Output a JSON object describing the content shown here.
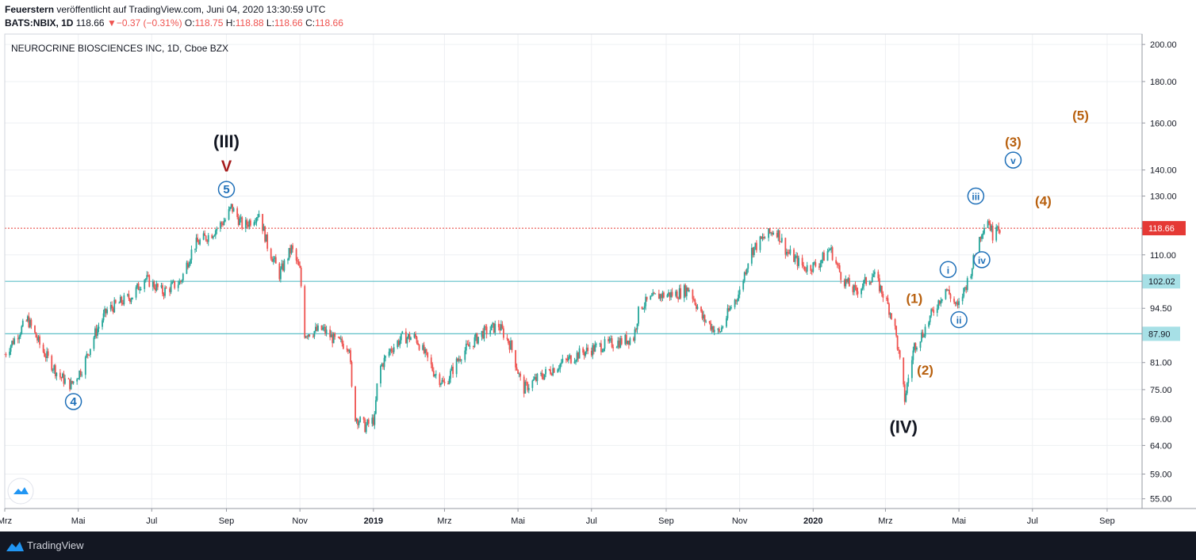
{
  "header": {
    "author": "Feuerstern",
    "published_text": "veröffentlicht auf TradingView.com, Juni 04, 2020 13:30:59 UTC",
    "symbol": "BATS:NBIX, 1D",
    "last": "118.66",
    "arrow": "▼",
    "change": "−0.37 (−0.31%)",
    "o_label": "O:",
    "o_value": "118.75",
    "h_label": "H:",
    "h_value": "118.88",
    "l_label": "L:",
    "l_value": "118.66",
    "c_label": "C:",
    "c_value": "118.66"
  },
  "footer": {
    "brand": "TradingView"
  },
  "colors": {
    "up": "#26a69a",
    "down": "#ef5350",
    "wave_major": "#131722",
    "wave_blue": "#1e6fb8",
    "wave_orange": "#b8600e",
    "wave_red": "#a61c1c",
    "hline": "#5fbfc8",
    "price_line": "#e53935"
  },
  "chart_data": {
    "type": "candlestick",
    "title": "NEUROCRINE BIOSCIENCES INC, 1D, Cboe BZX",
    "y_scale": "log",
    "ylim": [
      53.5,
      206
    ],
    "y_ticks": [
      200,
      180,
      160,
      140,
      130,
      110,
      94.5,
      81,
      75,
      69,
      64,
      59,
      55
    ],
    "y_tick_labels": [
      "200.00",
      "180.00",
      "160.00",
      "140.00",
      "130.00",
      "110.00",
      "94.50",
      "81.00",
      "75.00",
      "69.00",
      "64.00",
      "59.00",
      "55.00"
    ],
    "x_range": [
      "2018-03-01",
      "2020-09-30"
    ],
    "x_ticks": [
      {
        "date": "2018-03-01",
        "label": "Mrz"
      },
      {
        "date": "2018-05-01",
        "label": "Mai"
      },
      {
        "date": "2018-07-01",
        "label": "Jul"
      },
      {
        "date": "2018-09-01",
        "label": "Sep"
      },
      {
        "date": "2018-11-01",
        "label": "Nov"
      },
      {
        "date": "2019-01-01",
        "label": "2019"
      },
      {
        "date": "2019-03-01",
        "label": "Mrz"
      },
      {
        "date": "2019-05-01",
        "label": "Mai"
      },
      {
        "date": "2019-07-01",
        "label": "Jul"
      },
      {
        "date": "2019-09-01",
        "label": "Sep"
      },
      {
        "date": "2019-11-01",
        "label": "Nov"
      },
      {
        "date": "2020-01-01",
        "label": "2020"
      },
      {
        "date": "2020-03-01",
        "label": "Mrz"
      },
      {
        "date": "2020-05-01",
        "label": "Mai"
      },
      {
        "date": "2020-07-01",
        "label": "Jul"
      },
      {
        "date": "2020-09-01",
        "label": "Sep"
      }
    ],
    "price_path": [
      [
        "2018-03-01",
        83
      ],
      [
        "2018-03-20",
        91.5
      ],
      [
        "2018-04-01",
        84
      ],
      [
        "2018-04-15",
        78
      ],
      [
        "2018-04-25",
        76
      ],
      [
        "2018-05-05",
        80
      ],
      [
        "2018-05-15",
        88
      ],
      [
        "2018-05-25",
        94
      ],
      [
        "2018-06-15",
        98
      ],
      [
        "2018-06-25",
        103
      ],
      [
        "2018-07-10",
        99
      ],
      [
        "2018-07-25",
        102
      ],
      [
        "2018-08-05",
        113
      ],
      [
        "2018-08-20",
        117
      ],
      [
        "2018-09-01",
        122
      ],
      [
        "2018-09-05",
        126
      ],
      [
        "2018-09-15",
        119
      ],
      [
        "2018-09-28",
        124
      ],
      [
        "2018-10-05",
        113
      ],
      [
        "2018-10-15",
        104
      ],
      [
        "2018-10-25",
        112
      ],
      [
        "2018-11-01",
        105
      ],
      [
        "2018-11-05",
        88
      ],
      [
        "2018-11-20",
        89
      ],
      [
        "2018-12-01",
        86
      ],
      [
        "2018-12-12",
        85
      ],
      [
        "2018-12-15",
        70
      ],
      [
        "2018-12-25",
        67.5
      ],
      [
        "2019-01-02",
        69
      ],
      [
        "2019-01-05",
        79
      ],
      [
        "2019-01-15",
        84
      ],
      [
        "2019-01-25",
        87
      ],
      [
        "2019-02-05",
        87
      ],
      [
        "2019-02-20",
        79
      ],
      [
        "2019-03-01",
        76
      ],
      [
        "2019-03-15",
        83
      ],
      [
        "2019-04-01",
        88
      ],
      [
        "2019-04-15",
        90
      ],
      [
        "2019-04-25",
        85
      ],
      [
        "2019-05-05",
        75
      ],
      [
        "2019-05-15",
        77
      ],
      [
        "2019-06-01",
        80
      ],
      [
        "2019-06-20",
        83
      ],
      [
        "2019-07-10",
        85
      ],
      [
        "2019-07-25",
        86
      ],
      [
        "2019-08-05",
        87
      ],
      [
        "2019-08-10",
        95
      ],
      [
        "2019-08-25",
        98
      ],
      [
        "2019-09-10",
        98.5
      ],
      [
        "2019-09-20",
        100
      ],
      [
        "2019-10-01",
        92
      ],
      [
        "2019-10-15",
        88
      ],
      [
        "2019-10-25",
        95
      ],
      [
        "2019-11-01",
        99
      ],
      [
        "2019-11-10",
        111
      ],
      [
        "2019-11-20",
        115
      ],
      [
        "2019-12-01",
        118.5
      ],
      [
        "2019-12-10",
        111
      ],
      [
        "2019-12-25",
        106
      ],
      [
        "2020-01-05",
        107
      ],
      [
        "2020-01-15",
        112
      ],
      [
        "2020-01-25",
        103
      ],
      [
        "2020-02-05",
        99
      ],
      [
        "2020-02-20",
        104
      ],
      [
        "2020-03-01",
        97
      ],
      [
        "2020-03-08",
        91
      ],
      [
        "2020-03-17",
        73
      ],
      [
        "2020-03-25",
        85
      ],
      [
        "2020-04-01",
        88
      ],
      [
        "2020-04-10",
        94
      ],
      [
        "2020-04-20",
        100
      ],
      [
        "2020-04-30",
        94.5
      ],
      [
        "2020-05-10",
        104
      ],
      [
        "2020-05-20",
        118
      ],
      [
        "2020-05-25",
        122
      ],
      [
        "2020-05-30",
        115
      ],
      [
        "2020-06-01",
        121
      ],
      [
        "2020-06-04",
        118.66
      ]
    ],
    "horizontal_lines": [
      {
        "price": 102.02,
        "label": "102.02"
      },
      {
        "price": 87.9,
        "label": "87.90"
      }
    ],
    "current_price": {
      "price": 118.66,
      "label": "118.66"
    },
    "wave_labels": [
      {
        "text": "(III)",
        "date": "2018-09-01",
        "price": 152,
        "style": "major"
      },
      {
        "text": "V",
        "date": "2018-09-01",
        "price": 142,
        "style": "red"
      },
      {
        "text": "5",
        "date": "2018-09-01",
        "price": 132.5,
        "style": "circle"
      },
      {
        "text": "4",
        "date": "2018-04-27",
        "price": 72.5,
        "style": "circle"
      },
      {
        "text": "(IV)",
        "date": "2020-03-16",
        "price": 67.5,
        "style": "major"
      },
      {
        "text": "(1)",
        "date": "2020-03-25",
        "price": 97.5,
        "style": "orange"
      },
      {
        "text": "(2)",
        "date": "2020-04-03",
        "price": 79.5,
        "style": "orange"
      },
      {
        "text": "i",
        "date": "2020-04-22",
        "price": 105.5,
        "style": "circle"
      },
      {
        "text": "ii",
        "date": "2020-05-01",
        "price": 91.5,
        "style": "circle"
      },
      {
        "text": "iii",
        "date": "2020-05-15",
        "price": 130,
        "style": "circle"
      },
      {
        "text": "iv",
        "date": "2020-05-20",
        "price": 108.5,
        "style": "circle"
      },
      {
        "text": "v",
        "date": "2020-06-15",
        "price": 144,
        "style": "circle"
      },
      {
        "text": "(3)",
        "date": "2020-06-15",
        "price": 152,
        "style": "orange"
      },
      {
        "text": "(4)",
        "date": "2020-07-10",
        "price": 128.5,
        "style": "orange"
      },
      {
        "text": "(5)",
        "date": "2020-08-10",
        "price": 164,
        "style": "orange"
      }
    ]
  }
}
